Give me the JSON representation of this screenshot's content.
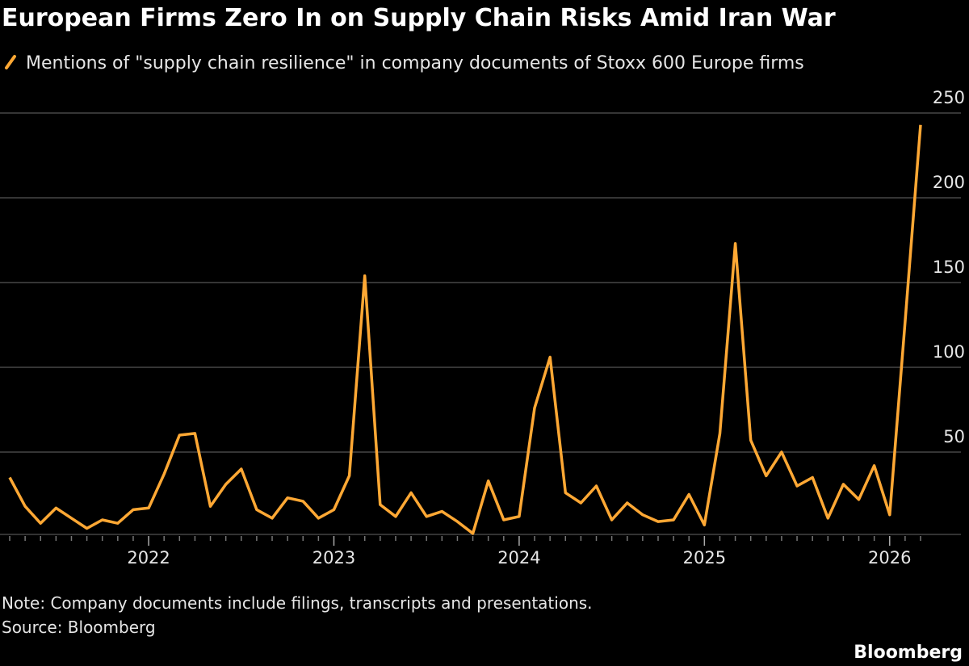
{
  "chart_data": {
    "type": "line",
    "title": "European Firms Zero In on Supply Chain Risks Amid Iran War",
    "note": "Note: Company documents include filings, transcripts and presentations.",
    "source": "Source: Bloomberg",
    "brand": "Bloomberg",
    "categories": [
      null,
      null,
      null,
      null,
      null,
      null,
      null,
      null,
      null,
      "2022",
      null,
      null,
      null,
      null,
      null,
      null,
      null,
      null,
      null,
      null,
      null,
      "2023",
      null,
      null,
      null,
      null,
      null,
      null,
      null,
      null,
      null,
      null,
      null,
      "2024",
      null,
      null,
      null,
      null,
      null,
      null,
      null,
      null,
      null,
      null,
      null,
      "2025",
      null,
      null,
      null,
      null,
      null,
      null,
      null,
      null,
      null,
      null,
      null,
      "2026",
      null,
      null
    ],
    "series": [
      {
        "name": "Mentions of \"supply chain resilience\" in company documents of Stoxx 600 Europe firms",
        "color": "#ffa834",
        "values": [
          35,
          18,
          8,
          17,
          11,
          5,
          10,
          8,
          16,
          17,
          37,
          60,
          61,
          18,
          31,
          40,
          16,
          11,
          23,
          21,
          11,
          16,
          36,
          154,
          19,
          12,
          26,
          12,
          15,
          9,
          2,
          33,
          10,
          12,
          76,
          106,
          26,
          20,
          30,
          10,
          20,
          13,
          9,
          10,
          25,
          7,
          61,
          173,
          57,
          36,
          50,
          30,
          35,
          11,
          31,
          22,
          42,
          13,
          127,
          243
        ]
      }
    ],
    "ylim": [
      0,
      250
    ],
    "yticks": [
      50,
      100,
      150,
      200,
      250
    ],
    "grid": true
  }
}
